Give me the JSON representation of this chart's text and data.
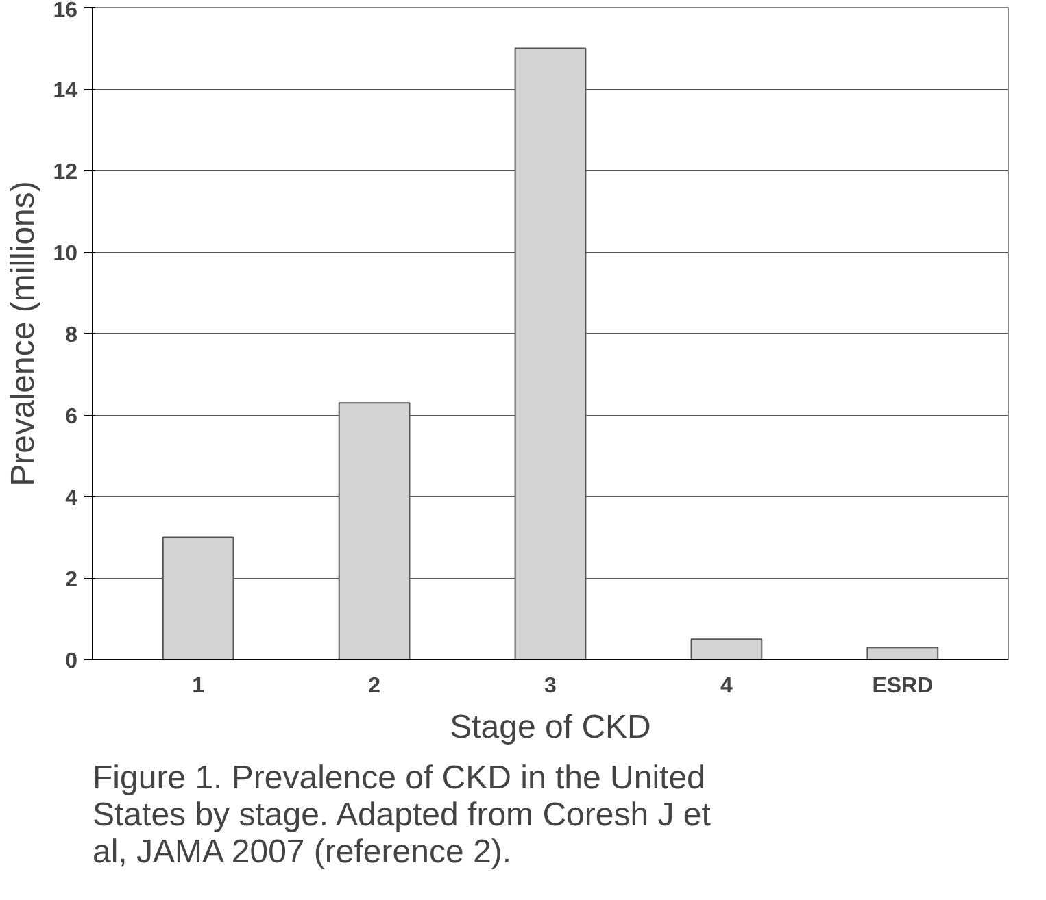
{
  "chart_data": {
    "type": "bar",
    "xlabel": "Stage of CKD",
    "ylabel": "Prevalence (millions)",
    "categories": [
      "1",
      "2",
      "3",
      "4",
      "ESRD"
    ],
    "values": [
      3.0,
      6.3,
      15.0,
      0.5,
      0.3
    ],
    "color": "#d4d4d4",
    "ylim": [
      0,
      16
    ],
    "yticks": [
      0,
      2,
      4,
      6,
      8,
      10,
      12,
      14,
      16
    ],
    "grid": "y",
    "annotations": [
      "Figure 1. Prevalence of CKD in the United States by stage. Adapted from Coresh J et al, JAMA 2007 (reference 2)."
    ]
  }
}
